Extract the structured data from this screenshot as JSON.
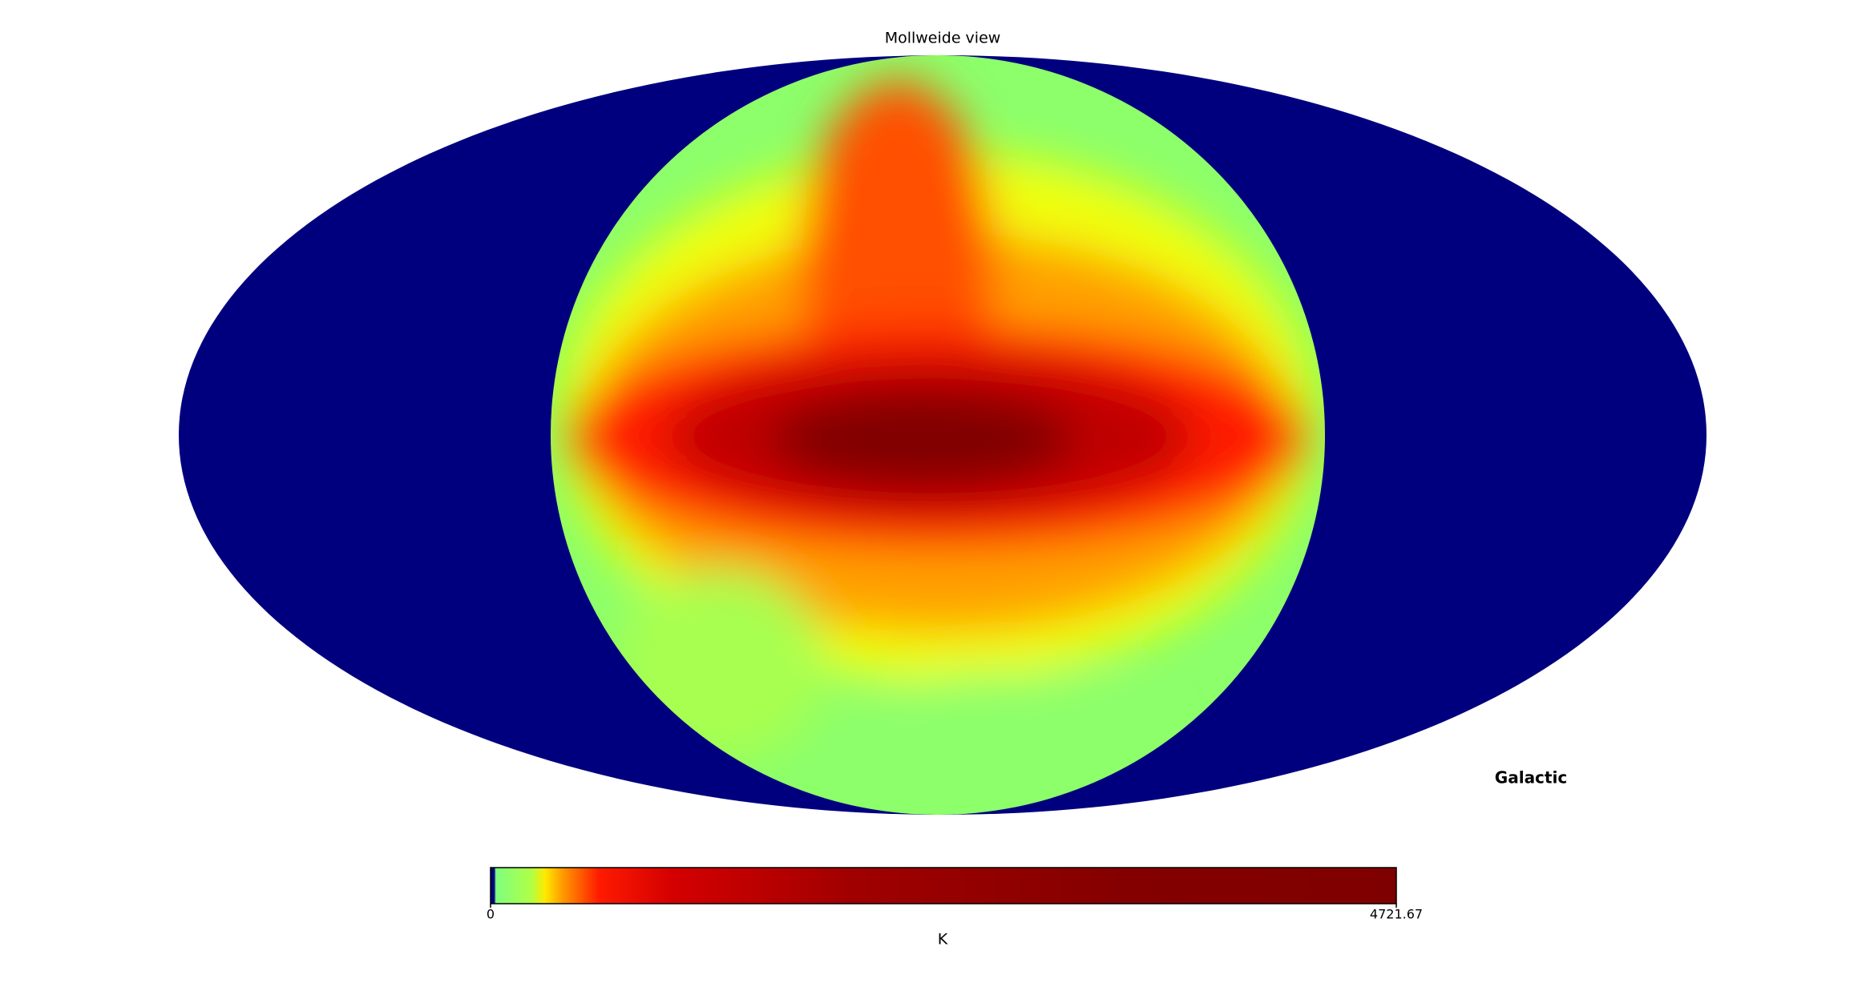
{
  "chart_data": {
    "type": "mollweide",
    "title": "Mollweide view",
    "coord_label": "Galactic",
    "background_color": "#00007f",
    "colorbar": {
      "label": "K",
      "xlim": [
        0,
        4721.67
      ],
      "xticks": [
        0,
        4721.67
      ]
    }
  }
}
